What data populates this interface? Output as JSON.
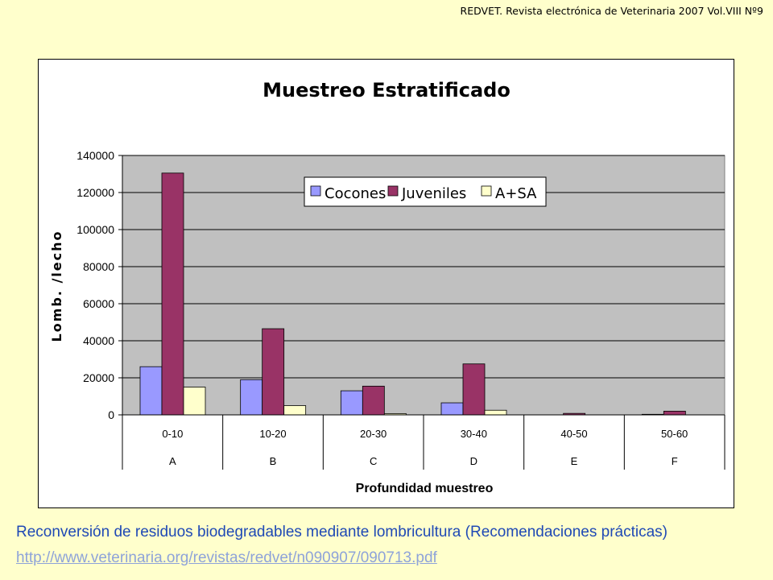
{
  "header": "REDVET. Revista electrónica de Veterinaria 2007 Vol.VIII Nº9",
  "chart_data": {
    "type": "bar",
    "title": "Muestreo Estratificado",
    "xlabel": "Profundidad muestreo",
    "ylabel": "Lomb. /lecho",
    "categories": [
      "0-10",
      "10-20",
      "20-30",
      "30-40",
      "40-50",
      "50-60"
    ],
    "categories_level2": [
      "A",
      "B",
      "C",
      "D",
      "E",
      "F"
    ],
    "ylim": [
      0,
      140000
    ],
    "yticks": [
      0,
      20000,
      40000,
      60000,
      80000,
      100000,
      120000,
      140000
    ],
    "ytick_labels": [
      "0",
      "20000",
      "40000",
      "60000",
      "80000",
      "100000",
      "120000",
      "140000"
    ],
    "grid": true,
    "legend_position": "top-right",
    "series": [
      {
        "name": "Cocones",
        "color": "#9999ff",
        "values": [
          26000,
          19000,
          13000,
          6500,
          0,
          300
        ]
      },
      {
        "name": "Juveniles",
        "color": "#993366",
        "values": [
          130500,
          46500,
          15500,
          27500,
          800,
          2000
        ]
      },
      {
        "name": "A+SA",
        "color": "#ffffcc",
        "values": [
          15000,
          5000,
          700,
          2500,
          0,
          0
        ]
      }
    ],
    "plot_background": "#c0c0c0"
  },
  "footer": {
    "text": "Reconversión de residuos biodegradables mediante lombricultura (Recomendaciones prácticas)",
    "link": "http://www.veterinaria.org/revistas/redvet/n090907/090713.pdf"
  }
}
